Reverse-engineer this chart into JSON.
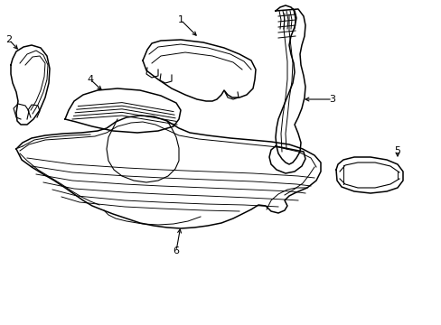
{
  "bg_color": "#ffffff",
  "line_color": "#000000",
  "line_width": 1.1,
  "fig_width": 4.89,
  "fig_height": 3.6,
  "dpi": 100
}
